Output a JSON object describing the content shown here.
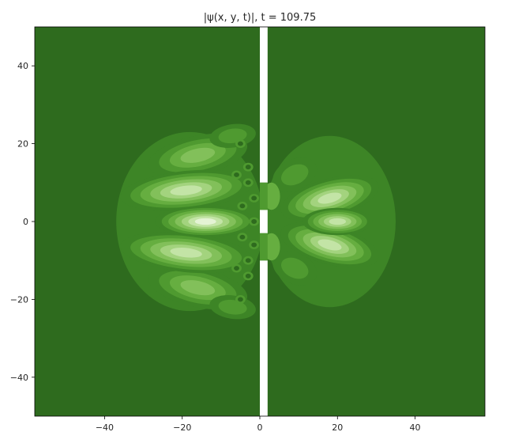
{
  "chart_data": {
    "type": "heatmap",
    "title": "|ψ(x, y, t)|, t = 109.75",
    "xlabel": "",
    "ylabel": "",
    "xlim": [
      -58,
      58
    ],
    "ylim": [
      -50,
      50
    ],
    "x_ticks": [
      -40,
      -20,
      0,
      20,
      40
    ],
    "y_ticks": [
      40,
      20,
      0,
      -20,
      -40
    ],
    "x_tick_labels": [
      "−40",
      "−20",
      "0",
      "20",
      "40"
    ],
    "y_tick_labels": [
      "40",
      "20",
      "0",
      "−20",
      "−40"
    ],
    "colormap": "greens",
    "colors": {
      "background_level": "#2e6b1e",
      "levels": [
        "#2e6b1e",
        "#3d8526",
        "#4f9a30",
        "#66ae40",
        "#82c05a",
        "#a3d37e",
        "#c3e4a6",
        "#e4f3d4"
      ],
      "barrier": "#ffffff"
    },
    "barrier": {
      "x_range": [
        0,
        2
      ],
      "slits_y": [
        [
          3,
          10
        ],
        [
          -10,
          -3
        ]
      ]
    },
    "grid": false,
    "legend": "none"
  }
}
